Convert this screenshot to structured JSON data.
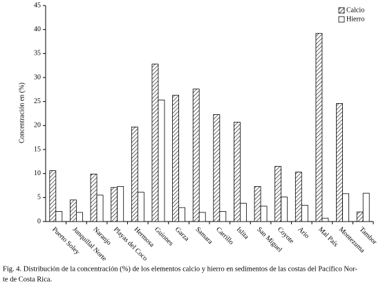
{
  "chart_data": {
    "type": "bar",
    "y_label": "Concentración en (%)",
    "categories": [
      "Puerto Soley",
      "Junquillal Norte",
      "Naranjo",
      "Playas del Coco",
      "Hermosa",
      "Guiones",
      "Garza",
      "Samara",
      "Carrillo",
      "Islita",
      "San Miguel",
      "Coyote",
      "Ario",
      "Mal País",
      "Montezuma",
      "Tambor"
    ],
    "series": [
      {
        "name": "Calcio",
        "color": "#ffffff",
        "pattern": "hatch",
        "values": [
          10.6,
          4.5,
          9.9,
          7.1,
          19.7,
          32.8,
          26.3,
          27.6,
          22.3,
          20.7,
          7.3,
          11.5,
          10.3,
          39.2,
          24.6,
          2.0
        ]
      },
      {
        "name": "Hierro",
        "color": "#ffffff",
        "values": [
          2.1,
          1.9,
          5.5,
          7.3,
          6.1,
          25.3,
          2.9,
          1.9,
          2.1,
          3.8,
          3.2,
          5.1,
          3.4,
          0.7,
          5.8,
          5.9
        ]
      }
    ],
    "ylim": [
      0,
      45
    ],
    "yticks": [
      0,
      5,
      10,
      15,
      20,
      25,
      30,
      35,
      40,
      45
    ],
    "legend": "top-right",
    "caption": [
      "Fig. 4. Distribución de la concentración (%) de los elementos calcio y hierro en sedimentos de las costas del Pacífico Nor-",
      "te de Costa Rica."
    ]
  }
}
